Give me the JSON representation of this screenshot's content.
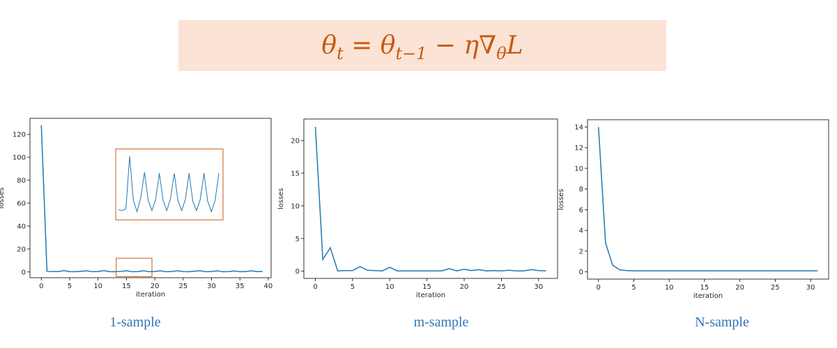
{
  "formula": "θ_t = θ_{t−1} − η∇_θ L",
  "colors": {
    "line": "#1f77b4",
    "inset_frame": "#c55a11",
    "caption": "#2e75b6",
    "formula_bg": "#fbe3d5",
    "formula_text": "#c55a11"
  },
  "captions": [
    "1-sample",
    "m-sample",
    "N-sample"
  ],
  "chart_data": [
    {
      "type": "line",
      "title": "",
      "xlabel": "iteration",
      "ylabel": "losses",
      "xlim": [
        -2,
        40.5
      ],
      "ylim": [
        -5,
        134
      ],
      "x_ticks": [
        0,
        5,
        10,
        15,
        20,
        25,
        30,
        35,
        40
      ],
      "y_ticks": [
        0,
        20,
        40,
        60,
        80,
        100,
        120
      ],
      "grid": false,
      "series": [
        {
          "x": [
            0,
            1,
            2,
            3,
            4,
            5,
            6,
            7,
            8,
            9,
            10,
            11,
            12,
            13,
            14,
            15,
            16,
            17,
            18,
            19,
            20,
            21,
            22,
            23,
            24,
            25,
            26,
            27,
            28,
            29,
            30,
            31,
            32,
            33,
            34,
            35,
            36,
            37,
            38,
            39
          ],
          "y": [
            128,
            0.5,
            0.4,
            0.3,
            1.2,
            0.3,
            0.2,
            0.6,
            1.0,
            0.2,
            0.4,
            1.2,
            0.3,
            0.2,
            0.5,
            1.1,
            0.2,
            0.3,
            1.1,
            0.2,
            0.5,
            1.0,
            0.2,
            0.4,
            1.1,
            0.3,
            0.2,
            0.7,
            1.1,
            0.2,
            0.4,
            1.0,
            0.2,
            0.3,
            0.9,
            0.2,
            0.4,
            1.0,
            0.3,
            0.5
          ]
        }
      ],
      "inset": {
        "highlight_x": [
          13.2,
          19.5
        ],
        "highlight_y": [
          -4,
          12
        ],
        "y": [
          48,
          47,
          49,
          105,
          58,
          46,
          61,
          88,
          58,
          47,
          59,
          87,
          58,
          47,
          60,
          87,
          58,
          47,
          59,
          87,
          57,
          47,
          59,
          87,
          57,
          46,
          58,
          87
        ]
      }
    },
    {
      "type": "line",
      "title": "",
      "xlabel": "iteration",
      "ylabel": "losses",
      "xlim": [
        -1.55,
        32.55
      ],
      "ylim": [
        -1.1,
        23.3
      ],
      "x_ticks": [
        0,
        5,
        10,
        15,
        20,
        25,
        30
      ],
      "y_ticks": [
        0,
        5,
        10,
        15,
        20
      ],
      "grid": false,
      "series": [
        {
          "x": [
            0,
            1,
            2,
            3,
            4,
            5,
            6,
            7,
            8,
            9,
            10,
            11,
            12,
            13,
            14,
            15,
            16,
            17,
            18,
            19,
            20,
            21,
            22,
            23,
            24,
            25,
            26,
            27,
            28,
            29,
            30,
            31
          ],
          "y": [
            22.1,
            1.8,
            3.6,
            0.05,
            0.1,
            0.1,
            0.7,
            0.15,
            0.1,
            0.05,
            0.6,
            0.05,
            0.05,
            0.05,
            0.05,
            0.05,
            0.05,
            0.05,
            0.4,
            0.05,
            0.3,
            0.1,
            0.25,
            0.05,
            0.1,
            0.05,
            0.15,
            0.05,
            0.05,
            0.25,
            0.1,
            0.05
          ]
        }
      ]
    },
    {
      "type": "line",
      "title": "",
      "xlabel": "iteration",
      "ylabel": "losses",
      "xlim": [
        -1.55,
        32.55
      ],
      "ylim": [
        -0.7,
        14.7
      ],
      "x_ticks": [
        0,
        5,
        10,
        15,
        20,
        25,
        30
      ],
      "y_ticks": [
        0,
        2,
        4,
        6,
        8,
        10,
        12,
        14
      ],
      "grid": false,
      "series": [
        {
          "x": [
            0,
            1,
            2,
            3,
            4,
            5,
            6,
            7,
            8,
            9,
            10,
            11,
            12,
            13,
            14,
            15,
            16,
            17,
            18,
            19,
            20,
            21,
            22,
            23,
            24,
            25,
            26,
            27,
            28,
            29,
            30,
            31
          ],
          "y": [
            14.0,
            2.8,
            0.65,
            0.2,
            0.12,
            0.1,
            0.1,
            0.1,
            0.1,
            0.1,
            0.1,
            0.1,
            0.1,
            0.1,
            0.1,
            0.1,
            0.1,
            0.1,
            0.1,
            0.1,
            0.1,
            0.1,
            0.1,
            0.1,
            0.1,
            0.1,
            0.1,
            0.1,
            0.1,
            0.1,
            0.1,
            0.1
          ]
        }
      ]
    }
  ]
}
